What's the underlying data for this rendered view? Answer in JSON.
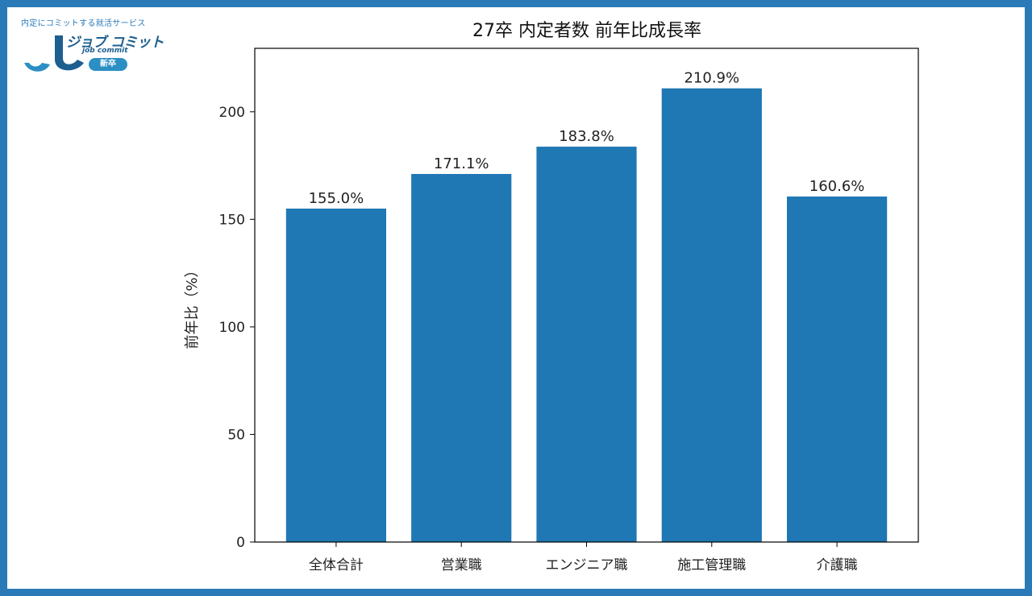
{
  "logo": {
    "tagline": "内定にコミットする就活サービス",
    "brand": "ジョブ コミット",
    "brand_en": "job commit",
    "badge": "新卒"
  },
  "colors": {
    "frame": "#2a7ab8",
    "bar": "#1f77b4",
    "logo_dark": "#1d5f8f",
    "logo_light": "#2b8fc4"
  },
  "chart_data": {
    "type": "bar",
    "title": "27卒 内定者数 前年比成長率",
    "xlabel": "",
    "ylabel": "前年比（%）",
    "categories": [
      "全体合計",
      "営業職",
      "エンジニア職",
      "施工管理職",
      "介護職"
    ],
    "values": [
      155.0,
      171.1,
      183.8,
      210.9,
      160.6
    ],
    "data_labels": [
      "155.0%",
      "171.1%",
      "183.8%",
      "210.9%",
      "160.6%"
    ],
    "yticks": [
      0,
      50,
      100,
      150,
      200
    ],
    "ytick_labels": [
      "0",
      "50",
      "100",
      "150",
      "200"
    ],
    "ylim": [
      0,
      229.5
    ],
    "grid": false,
    "legend": "none"
  }
}
